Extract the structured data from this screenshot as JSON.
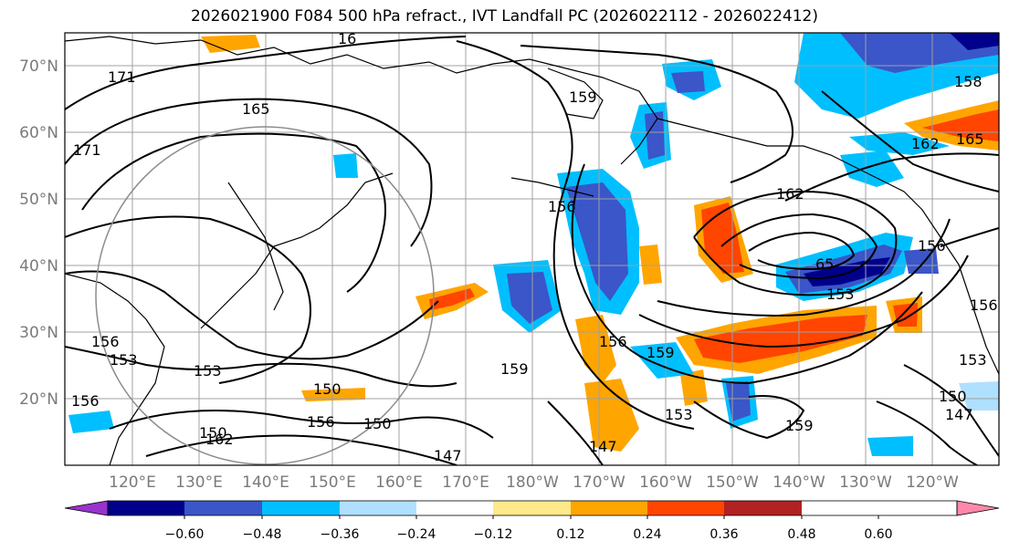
{
  "title": "2026021900 F084 500 hPa refract., IVT Landfall PC (2026022112 - 2026022412)",
  "latitude_labels": [
    "70°N",
    "60°N",
    "50°N",
    "40°N",
    "30°N",
    "20°N"
  ],
  "longitude_labels": [
    "120°E",
    "130°E",
    "140°E",
    "150°E",
    "160°E",
    "170°E",
    "180°W",
    "170°W",
    "160°W",
    "150°W",
    "140°W",
    "130°W",
    "120°W"
  ],
  "contour_labels": [
    "171",
    "165",
    "16",
    "159",
    "158",
    "65",
    "162",
    "165",
    "162",
    "156",
    "153",
    "156",
    "156",
    "159",
    "153",
    "159",
    "150",
    "156",
    "150",
    "150",
    "162",
    "147",
    "147",
    "153",
    "159",
    "147",
    "150",
    "153",
    "156",
    "171",
    "153",
    "156",
    "156"
  ],
  "colorbar": {
    "ticks": [
      "−0.60",
      "−0.48",
      "−0.36",
      "−0.24",
      "−0.12",
      "0.12",
      "0.24",
      "0.36",
      "0.48",
      "0.60"
    ],
    "colors": [
      "#9933cc",
      "#00008b",
      "#3a56c8",
      "#00bfff",
      "#b0e0ff",
      "#ffffff",
      "#ffe98a",
      "#ffa500",
      "#ff4500",
      "#b22222",
      "#ff88aa"
    ]
  },
  "colors": {
    "contour": "#000000",
    "coast": "#000000",
    "grid": "#a0a0a0",
    "circle": "#8c8c8c"
  }
}
